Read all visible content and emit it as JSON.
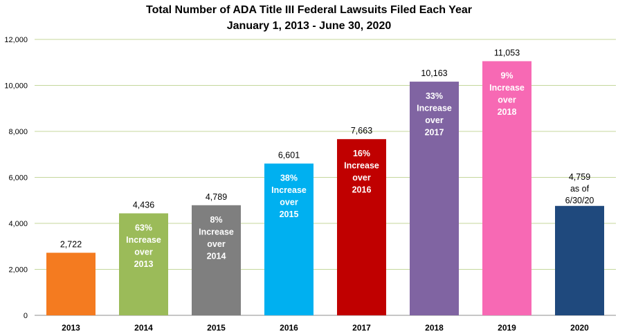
{
  "chart_data": {
    "type": "bar",
    "title": "Total Number of ADA Title III Federal Lawsuits Filed Each Year",
    "subtitle": "January 1, 2013 - June 30, 2020",
    "xlabel": "",
    "ylabel": "",
    "ylim": [
      0,
      12000
    ],
    "yticks": [
      0,
      2000,
      4000,
      6000,
      8000,
      10000,
      12000
    ],
    "ytick_labels": [
      "0",
      "2,000",
      "4,000",
      "6,000",
      "8,000",
      "10,000",
      "12,000"
    ],
    "grid": true,
    "categories": [
      "2013",
      "2014",
      "2015",
      "2016",
      "2017",
      "2018",
      "2019",
      "2020"
    ],
    "values": [
      2722,
      4436,
      4789,
      6601,
      7663,
      10163,
      11053,
      4759
    ],
    "data_labels": [
      "2,722",
      "4,436",
      "4,789",
      "6,601",
      "7,663",
      "10,163",
      "11,053",
      "4,759"
    ],
    "colors": [
      "#f47b20",
      "#9bbb59",
      "#7f7f7f",
      "#00b0f0",
      "#c00000",
      "#8064a2",
      "#f769b4",
      "#1f497d"
    ],
    "annotations": [
      [],
      [
        "63%",
        "Increase",
        "over",
        "2013"
      ],
      [
        "8%",
        "Increase",
        "over",
        "2014"
      ],
      [
        "38%",
        "Increase",
        "over",
        "2015"
      ],
      [
        "16%",
        "Increase",
        "over",
        "2016"
      ],
      [
        "33%",
        "Increase",
        "over",
        "2017"
      ],
      [
        "9%",
        "Increase",
        "over",
        "2018"
      ],
      []
    ],
    "label_notes": [
      "",
      "",
      "",
      "",
      "",
      "",
      "",
      "as of 6/30/20"
    ]
  }
}
